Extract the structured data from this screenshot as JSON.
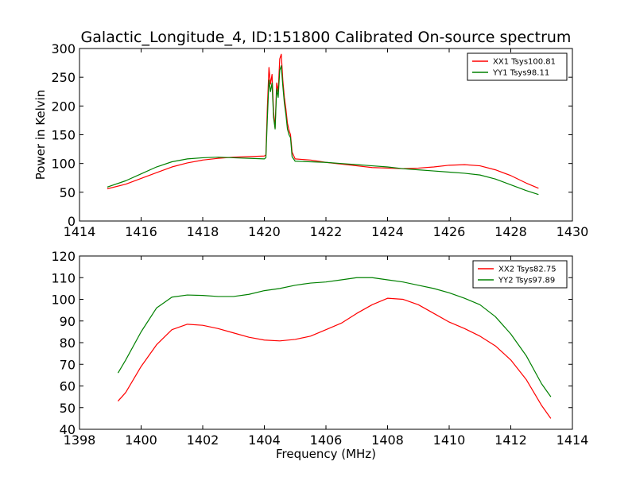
{
  "title": "Galactic_Longitude_4, ID:151800 Calibrated On-source spectrum",
  "chart_data": [
    {
      "type": "line",
      "ylabel": "Power in Kelvin",
      "xlabel": "",
      "xlim": [
        1414,
        1430
      ],
      "ylim": [
        0,
        300
      ],
      "xticks": [
        1414,
        1416,
        1418,
        1420,
        1422,
        1424,
        1426,
        1428,
        1430
      ],
      "yticks": [
        0,
        50,
        100,
        150,
        200,
        250,
        300
      ],
      "legend_position": "top-right",
      "series": [
        {
          "name": "XX1 Tsys100.81",
          "color": "#ff0000",
          "points": [
            [
              1414.9,
              56
            ],
            [
              1415.5,
              64
            ],
            [
              1416,
              74
            ],
            [
              1416.5,
              84
            ],
            [
              1417,
              94
            ],
            [
              1417.5,
              101
            ],
            [
              1418,
              106
            ],
            [
              1418.5,
              109
            ],
            [
              1419,
              111
            ],
            [
              1419.5,
              112
            ],
            [
              1420,
              113
            ],
            [
              1420.05,
              115
            ],
            [
              1420.1,
              200
            ],
            [
              1420.15,
              267
            ],
            [
              1420.2,
              238
            ],
            [
              1420.25,
              255
            ],
            [
              1420.3,
              190
            ],
            [
              1420.35,
              162
            ],
            [
              1420.4,
              240
            ],
            [
              1420.45,
              225
            ],
            [
              1420.5,
              282
            ],
            [
              1420.55,
              290
            ],
            [
              1420.6,
              245
            ],
            [
              1420.65,
              215
            ],
            [
              1420.7,
              195
            ],
            [
              1420.75,
              170
            ],
            [
              1420.8,
              158
            ],
            [
              1420.85,
              150
            ],
            [
              1420.9,
              120
            ],
            [
              1421,
              108
            ],
            [
              1421.5,
              106
            ],
            [
              1422,
              102
            ],
            [
              1422.5,
              99
            ],
            [
              1423,
              96
            ],
            [
              1423.5,
              93
            ],
            [
              1424,
              92
            ],
            [
              1424.5,
              91
            ],
            [
              1425,
              92
            ],
            [
              1425.5,
              94
            ],
            [
              1426,
              97
            ],
            [
              1426.5,
              98
            ],
            [
              1427,
              96
            ],
            [
              1427.5,
              89
            ],
            [
              1428,
              79
            ],
            [
              1428.5,
              66
            ],
            [
              1428.9,
              57
            ]
          ]
        },
        {
          "name": "YY1 Tsys98.11",
          "color": "#008000",
          "points": [
            [
              1414.9,
              59
            ],
            [
              1415.5,
              70
            ],
            [
              1416,
              82
            ],
            [
              1416.5,
              94
            ],
            [
              1417,
              103
            ],
            [
              1417.5,
              108
            ],
            [
              1418,
              110
            ],
            [
              1418.5,
              111
            ],
            [
              1419,
              110
            ],
            [
              1419.5,
              109
            ],
            [
              1420,
              108
            ],
            [
              1420.05,
              110
            ],
            [
              1420.1,
              180
            ],
            [
              1420.15,
              245
            ],
            [
              1420.2,
              225
            ],
            [
              1420.25,
              240
            ],
            [
              1420.3,
              180
            ],
            [
              1420.35,
              160
            ],
            [
              1420.4,
              230
            ],
            [
              1420.45,
              215
            ],
            [
              1420.5,
              262
            ],
            [
              1420.55,
              270
            ],
            [
              1420.6,
              235
            ],
            [
              1420.65,
              205
            ],
            [
              1420.7,
              185
            ],
            [
              1420.75,
              160
            ],
            [
              1420.8,
              150
            ],
            [
              1420.85,
              145
            ],
            [
              1420.9,
              112
            ],
            [
              1421,
              104
            ],
            [
              1421.5,
              103
            ],
            [
              1422,
              102
            ],
            [
              1422.5,
              100
            ],
            [
              1423,
              98
            ],
            [
              1423.5,
              96
            ],
            [
              1424,
              94
            ],
            [
              1424.5,
              91
            ],
            [
              1425,
              89
            ],
            [
              1425.5,
              87
            ],
            [
              1426,
              85
            ],
            [
              1426.5,
              83
            ],
            [
              1427,
              80
            ],
            [
              1427.5,
              73
            ],
            [
              1428,
              63
            ],
            [
              1428.5,
              53
            ],
            [
              1428.9,
              46
            ]
          ]
        }
      ]
    },
    {
      "type": "line",
      "ylabel": "",
      "xlabel": "Frequency (MHz)",
      "xlim": [
        1398,
        1414
      ],
      "ylim": [
        40,
        120
      ],
      "xticks": [
        1398,
        1400,
        1402,
        1404,
        1406,
        1408,
        1410,
        1412,
        1414
      ],
      "yticks": [
        40,
        50,
        60,
        70,
        80,
        90,
        100,
        110,
        120
      ],
      "legend_position": "top-right",
      "series": [
        {
          "name": "XX2 Tsys82.75",
          "color": "#ff0000",
          "points": [
            [
              1399.25,
              53
            ],
            [
              1399.5,
              57
            ],
            [
              1400,
              69
            ],
            [
              1400.5,
              79
            ],
            [
              1401,
              86
            ],
            [
              1401.5,
              88.5
            ],
            [
              1402,
              88
            ],
            [
              1402.5,
              86.5
            ],
            [
              1403,
              84.5
            ],
            [
              1403.5,
              82.5
            ],
            [
              1404,
              81.2
            ],
            [
              1404.5,
              80.8
            ],
            [
              1405,
              81.5
            ],
            [
              1405.5,
              83
            ],
            [
              1406,
              86
            ],
            [
              1406.5,
              89
            ],
            [
              1407,
              93.5
            ],
            [
              1407.5,
              97.5
            ],
            [
              1408,
              100.5
            ],
            [
              1408.5,
              100
            ],
            [
              1409,
              97.5
            ],
            [
              1409.5,
              93.5
            ],
            [
              1410,
              89.5
            ],
            [
              1410.5,
              86.5
            ],
            [
              1411,
              83
            ],
            [
              1411.5,
              78.5
            ],
            [
              1412,
              72
            ],
            [
              1412.5,
              63
            ],
            [
              1413,
              51
            ],
            [
              1413.3,
              45
            ]
          ]
        },
        {
          "name": "YY2 Tsys97.89",
          "color": "#008000",
          "points": [
            [
              1399.25,
              66
            ],
            [
              1399.5,
              72
            ],
            [
              1400,
              85
            ],
            [
              1400.5,
              96
            ],
            [
              1401,
              101
            ],
            [
              1401.5,
              102
            ],
            [
              1402,
              101.8
            ],
            [
              1402.5,
              101.3
            ],
            [
              1403,
              101.3
            ],
            [
              1403.5,
              102.3
            ],
            [
              1404,
              104
            ],
            [
              1404.5,
              105
            ],
            [
              1405,
              106.5
            ],
            [
              1405.5,
              107.5
            ],
            [
              1406,
              108
            ],
            [
              1406.5,
              109
            ],
            [
              1407,
              110
            ],
            [
              1407.5,
              110
            ],
            [
              1408,
              109
            ],
            [
              1408.5,
              108
            ],
            [
              1409,
              106.5
            ],
            [
              1409.5,
              105
            ],
            [
              1410,
              103
            ],
            [
              1410.5,
              100.5
            ],
            [
              1411,
              97.5
            ],
            [
              1411.5,
              92
            ],
            [
              1412,
              84
            ],
            [
              1412.5,
              74
            ],
            [
              1413,
              61
            ],
            [
              1413.3,
              55
            ]
          ]
        }
      ]
    }
  ]
}
